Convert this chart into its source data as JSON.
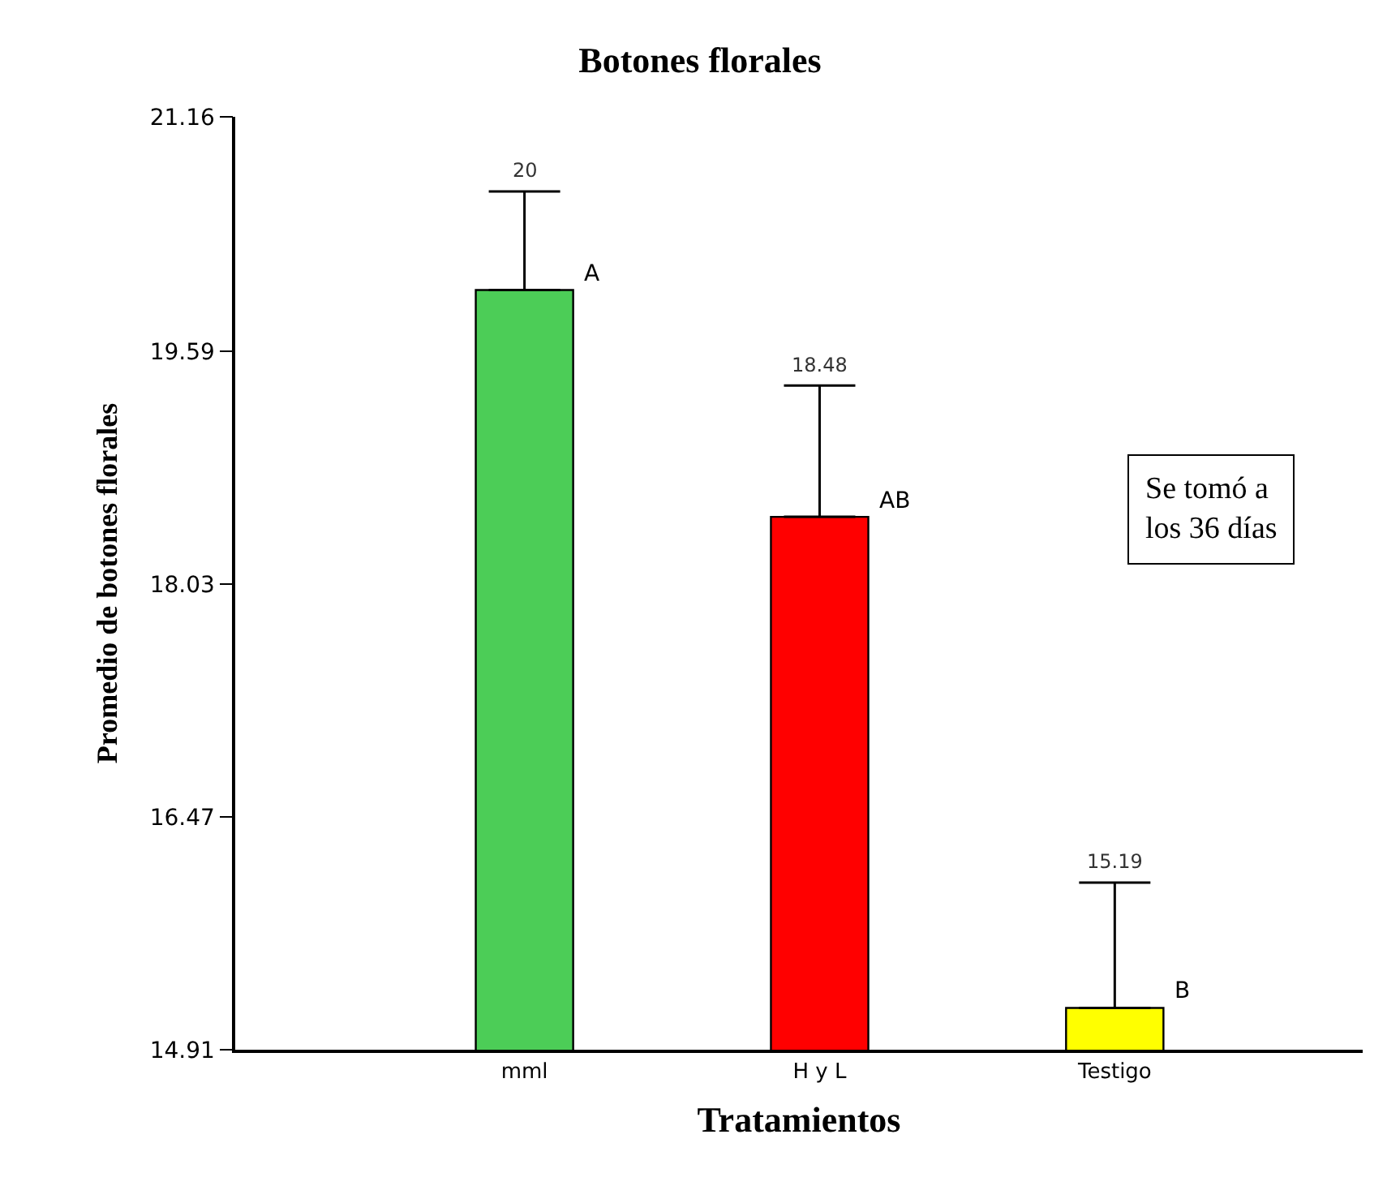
{
  "chart_data": {
    "type": "bar",
    "title": "Botones florales",
    "xlabel": "Tratamientos",
    "ylabel": "Promedio de botones florales",
    "categories": [
      "mml",
      "H y L",
      "Testigo"
    ],
    "values": [
      20,
      18.48,
      15.19
    ],
    "colors": [
      "#4ccd57",
      "#ff0000",
      "#ffff00"
    ],
    "errors": [
      [
        20,
        20.66
      ],
      [
        18.48,
        19.36
      ],
      [
        15.19,
        16.03
      ]
    ],
    "ylim": [
      14.91,
      21.16
    ],
    "yticks": [
      14.91,
      16.47,
      18.03,
      19.59,
      21.16
    ],
    "annotations": [
      {
        "text": "A",
        "x": "mml",
        "y": 20
      },
      {
        "text": "AB",
        "x": "H y L",
        "y": 18.48
      },
      {
        "text": "B",
        "x": "Testigo",
        "y": 15.19
      },
      "20",
      "18.48",
      "15.19",
      "Se tomó a\nlos 36 días"
    ]
  }
}
